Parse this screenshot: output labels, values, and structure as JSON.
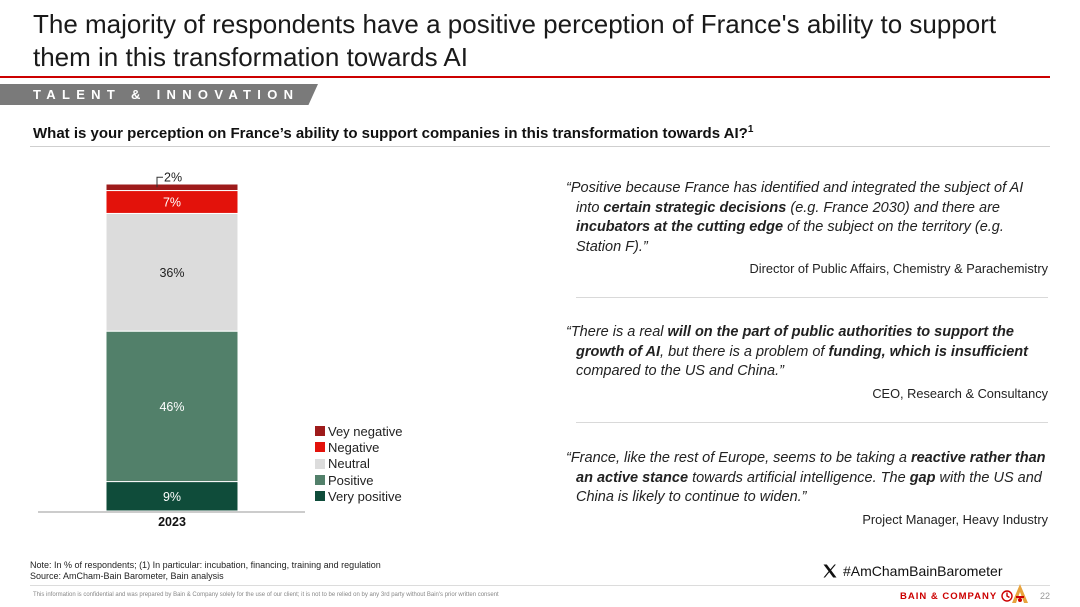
{
  "header": {
    "title": "The majority of respondents have a positive perception of France's ability to support them in this transformation towards AI",
    "section_tag": "TALENT & INNOVATION"
  },
  "question": {
    "text": "What is your perception on France’s ability to support companies in this transformation towards AI?",
    "footnote_mark": "1"
  },
  "chart_data": {
    "type": "bar",
    "stacked": true,
    "categories": [
      "2023"
    ],
    "unit": "%",
    "ylim": [
      0,
      100
    ],
    "series": [
      {
        "name": "Very positive",
        "values": [
          9
        ],
        "label": "9%",
        "color": "#0f4c3a"
      },
      {
        "name": "Positive",
        "values": [
          46
        ],
        "label": "46%",
        "color": "#52806a"
      },
      {
        "name": "Neutral",
        "values": [
          36
        ],
        "label": "36%",
        "color": "#dcdcdc"
      },
      {
        "name": "Negative",
        "values": [
          7
        ],
        "label": "7%",
        "color": "#e3120b"
      },
      {
        "name": "Vey negative",
        "values": [
          2
        ],
        "label": "2%",
        "color": "#9e1b1b"
      }
    ],
    "legend": [
      {
        "label": "Vey negative",
        "color": "#9e1b1b"
      },
      {
        "label": "Negative",
        "color": "#e3120b"
      },
      {
        "label": "Neutral",
        "color": "#dcdcdc"
      },
      {
        "label": "Positive",
        "color": "#52806a"
      },
      {
        "label": "Very positive",
        "color": "#0f4c3a"
      }
    ],
    "legend_position": "right"
  },
  "quotes": [
    {
      "segments": [
        {
          "t": "“Positive because France has identified and integrated the subject of AI into ",
          "b": false
        },
        {
          "t": "certain strategic decisions",
          "b": true
        },
        {
          "t": " (e.g. France 2030) and there are ",
          "b": false
        },
        {
          "t": "incubators at the cutting edge",
          "b": true
        },
        {
          "t": " of the subject on the territory (e.g. Station F).”",
          "b": false
        }
      ],
      "attribution": "Director of Public Affairs, Chemistry & Parachemistry"
    },
    {
      "segments": [
        {
          "t": "“There is a real ",
          "b": false
        },
        {
          "t": "will on the part of public authorities to support the growth of AI",
          "b": true
        },
        {
          "t": ", but there is a problem of ",
          "b": false
        },
        {
          "t": "funding, which is insufficient",
          "b": true
        },
        {
          "t": " compared to the US and China.”",
          "b": false
        }
      ],
      "attribution": "CEO, Research & Consultancy"
    },
    {
      "segments": [
        {
          "t": "“France, like the rest of Europe, seems to be taking a ",
          "b": false
        },
        {
          "t": "reactive rather than an active stance",
          "b": true
        },
        {
          "t": " towards artificial intelligence. The ",
          "b": false
        },
        {
          "t": "gap",
          "b": true
        },
        {
          "t": " with the US and China is likely to continue to widen.”",
          "b": false
        }
      ],
      "attribution": "Project Manager, Heavy Industry"
    }
  ],
  "footer": {
    "note": "Note: In % of respondents; (1) In particular: incubation, financing, training and regulation",
    "source": "Source: AmCham-Bain Barometer, Bain analysis",
    "hashtag": "#AmChamBainBarometer",
    "disclaimer": "This information is confidential and was prepared by Bain & Company solely for the use of our client; it is not to be relied on by any 3rd party without Bain's prior written consent",
    "brand": "BAIN & COMPANY",
    "page_number": "22"
  },
  "colors": {
    "accent_red": "#cc0000",
    "section_tag_bg": "#7a7a7a"
  },
  "icons": [
    "x-logo-icon",
    "bain-logo-icon",
    "amcham-logo-icon"
  ]
}
